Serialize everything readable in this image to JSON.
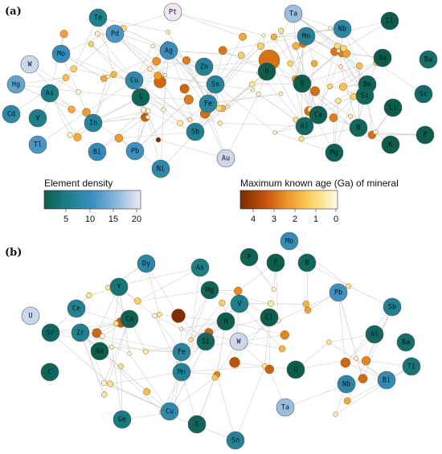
{
  "panels": [
    {
      "label": "(a)",
      "elements": [
        {
          "sym": "Pt",
          "d": 21
        },
        {
          "sym": "Ta",
          "d": 16.7
        },
        {
          "sym": "Te",
          "d": 6.2
        },
        {
          "sym": "Pd",
          "d": 12
        },
        {
          "sym": "Cl",
          "d": 1.0
        },
        {
          "sym": "Mn",
          "d": 7.3
        },
        {
          "sym": "Nb",
          "d": 8.6
        },
        {
          "sym": "Mo",
          "d": 10.2
        },
        {
          "sym": "Ag",
          "d": 10.5
        },
        {
          "sym": "W",
          "d": 19.3
        },
        {
          "sym": "Na",
          "d": 1.0
        },
        {
          "sym": "Ba",
          "d": 3.5
        },
        {
          "sym": "Hg",
          "d": 13.5
        },
        {
          "sym": "Zn",
          "d": 7.1
        },
        {
          "sym": "H",
          "d": 1.0
        },
        {
          "sym": "Cu",
          "d": 9.0
        },
        {
          "sym": "Sn",
          "d": 7.3
        },
        {
          "sym": "O",
          "d": 1.0
        },
        {
          "sym": "Be",
          "d": 1.9
        },
        {
          "sym": "As",
          "d": 5.7
        },
        {
          "sym": "S",
          "d": 2.1
        },
        {
          "sym": "Si",
          "d": 2.3
        },
        {
          "sym": "Sc",
          "d": 3.0
        },
        {
          "sym": "Cd",
          "d": 8.7
        },
        {
          "sym": "V",
          "d": 6.1
        },
        {
          "sym": "Fe",
          "d": 7.9
        },
        {
          "sym": "Ca",
          "d": 1.6
        },
        {
          "sym": "Li",
          "d": 0.5
        },
        {
          "sym": "In",
          "d": 7.3
        },
        {
          "sym": "Al",
          "d": 2.7
        },
        {
          "sym": "Sb",
          "d": 6.7
        },
        {
          "sym": "B",
          "d": 2.3
        },
        {
          "sym": "F",
          "d": 1.0
        },
        {
          "sym": "Tl",
          "d": 11.9
        },
        {
          "sym": "Bi",
          "d": 9.8
        },
        {
          "sym": "Pb",
          "d": 11.3
        },
        {
          "sym": "Mg",
          "d": 1.7
        },
        {
          "sym": "K",
          "d": 0.9
        },
        {
          "sym": "Au",
          "d": 19.3
        },
        {
          "sym": "Ni",
          "d": 8.9
        }
      ]
    },
    {
      "label": "(b)",
      "elements": [
        {
          "sym": "Mo",
          "d": 10.2
        },
        {
          "sym": "Dy",
          "d": 8.5
        },
        {
          "sym": "As",
          "d": 5.7
        },
        {
          "sym": "P",
          "d": 1.8
        },
        {
          "sym": "F",
          "d": 1.0
        },
        {
          "sym": "B",
          "d": 2.3
        },
        {
          "sym": "Y",
          "d": 4.5
        },
        {
          "sym": "Mg",
          "d": 1.7
        },
        {
          "sym": "Pb",
          "d": 11.3
        },
        {
          "sym": "U",
          "d": 19.1
        },
        {
          "sym": "Ce",
          "d": 6.8
        },
        {
          "sym": "V",
          "d": 6.1
        },
        {
          "sym": "Ca",
          "d": 1.6
        },
        {
          "sym": "H",
          "d": 1.0
        },
        {
          "sym": "Cl",
          "d": 1.0
        },
        {
          "sym": "Sb",
          "d": 6.7
        },
        {
          "sym": "Sr",
          "d": 2.6
        },
        {
          "sym": "Zr",
          "d": 6.5
        },
        {
          "sym": "Si",
          "d": 2.3
        },
        {
          "sym": "W",
          "d": 19.3
        },
        {
          "sym": "Al",
          "d": 2.7
        },
        {
          "sym": "Na",
          "d": 1.0
        },
        {
          "sym": "Fe",
          "d": 7.9
        },
        {
          "sym": "Ba",
          "d": 3.5
        },
        {
          "sym": "Mn",
          "d": 7.3
        },
        {
          "sym": "O",
          "d": 1.0
        },
        {
          "sym": "C",
          "d": 2.0
        },
        {
          "sym": "Ti",
          "d": 4.5
        },
        {
          "sym": "Bi",
          "d": 9.8
        },
        {
          "sym": "Nb",
          "d": 8.6
        },
        {
          "sym": "Ta",
          "d": 16.7
        },
        {
          "sym": "Ge",
          "d": 5.3
        },
        {
          "sym": "Cu",
          "d": 9.0
        },
        {
          "sym": "S",
          "d": 2.1
        },
        {
          "sym": "Sn",
          "d": 7.3
        }
      ]
    }
  ],
  "legend_density": {
    "title": "Element density",
    "ticks": [
      "5",
      "10",
      "15",
      "20"
    ],
    "colors": [
      "#0b5e4e",
      "#1c7f8a",
      "#3a8fc2",
      "#8ab8dd",
      "#efe8f3"
    ]
  },
  "legend_age": {
    "title": "Maximum known age (Ga) of mineral",
    "ticks": [
      "4",
      "3",
      "2",
      "1",
      "0"
    ],
    "colors": [
      "#7a2a06",
      "#c2520a",
      "#ef9a2c",
      "#fdd76a",
      "#fffbe6"
    ]
  }
}
